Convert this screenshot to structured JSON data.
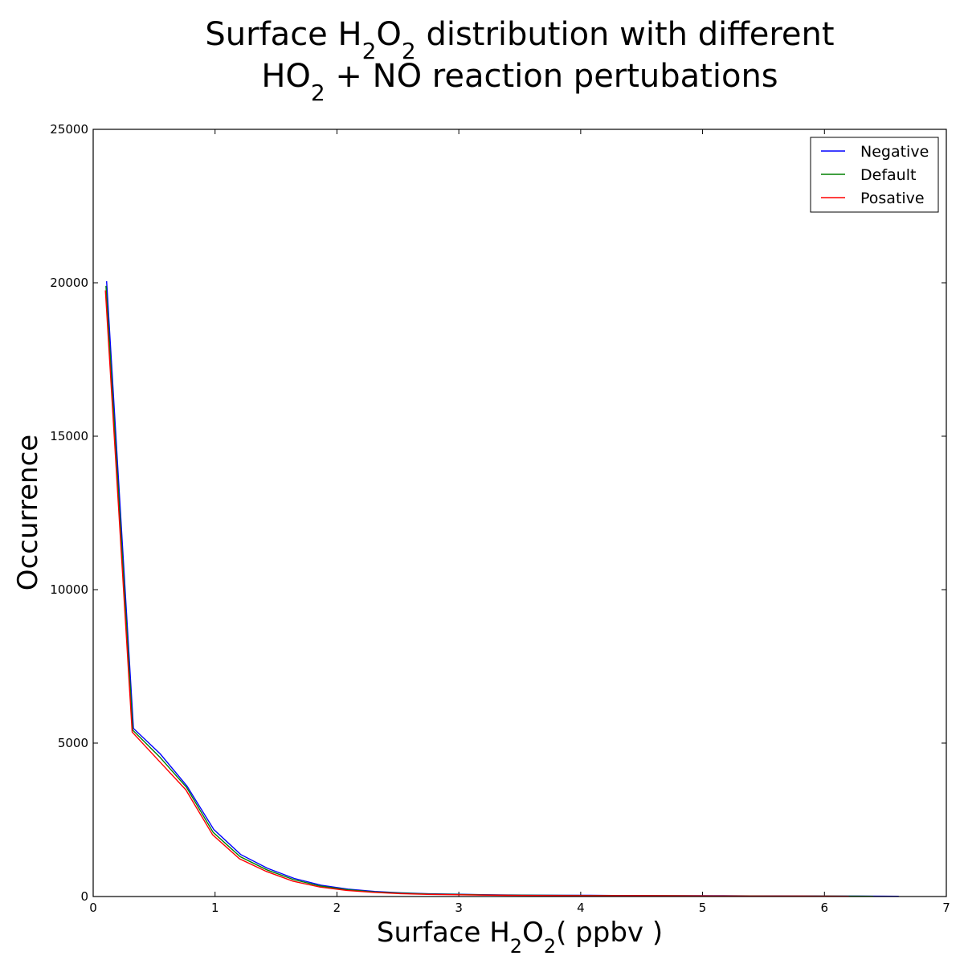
{
  "chart_data": {
    "type": "line",
    "title_line1": {
      "pre": "Surface H",
      "sub1": "2",
      "mid": "O",
      "sub2": "2",
      "post": " distribution with different"
    },
    "title_line2": {
      "pre": "HO",
      "sub": "2",
      "post": " + NO reaction pertubations"
    },
    "xlabel": {
      "pre": "Surface H",
      "sub1": "2",
      "mid": "O",
      "sub2": "2",
      "post": "( ppbv )"
    },
    "ylabel": "Occurrence",
    "xlim": [
      0,
      7
    ],
    "ylim": [
      0,
      25000
    ],
    "x_ticks": [
      0,
      1,
      2,
      3,
      4,
      5,
      6,
      7
    ],
    "y_ticks": [
      0,
      5000,
      10000,
      15000,
      20000,
      25000
    ],
    "x_tick_labels": [
      "0",
      "1",
      "2",
      "3",
      "4",
      "5",
      "6",
      "7"
    ],
    "y_tick_labels": [
      "0",
      "5000",
      "10000",
      "15000",
      "20000",
      "25000"
    ],
    "grid": false,
    "legend_position": "top-right",
    "series": [
      {
        "name": "Negative",
        "color": "#0000ff",
        "x": [
          0.11,
          0.33,
          0.55,
          0.77,
          0.99,
          1.21,
          1.43,
          1.65,
          1.87,
          2.09,
          2.31,
          2.53,
          2.75,
          2.97,
          3.19,
          3.41,
          3.63,
          3.85,
          4.07,
          4.29,
          4.51,
          4.73,
          4.95,
          5.17,
          5.39,
          5.61,
          5.83,
          6.05,
          6.27,
          6.49,
          6.61
        ],
        "y": [
          20050,
          5480,
          4650,
          3600,
          2180,
          1370,
          920,
          590,
          370,
          240,
          165,
          120,
          90,
          75,
          60,
          50,
          45,
          40,
          38,
          35,
          32,
          30,
          28,
          25,
          22,
          20,
          18,
          15,
          12,
          10,
          8
        ]
      },
      {
        "name": "Default",
        "color": "#008000",
        "x": [
          0.105,
          0.325,
          0.545,
          0.765,
          0.985,
          1.205,
          1.425,
          1.645,
          1.865,
          2.085,
          2.305,
          2.525,
          2.745,
          2.965,
          3.185,
          3.405,
          3.625,
          3.845,
          4.065,
          4.285,
          4.505,
          4.725,
          4.945,
          5.165,
          5.385,
          5.605,
          5.825,
          6.045,
          6.265,
          6.4
        ],
        "y": [
          19900,
          5420,
          4550,
          3560,
          2090,
          1300,
          870,
          550,
          340,
          220,
          150,
          110,
          80,
          70,
          55,
          45,
          40,
          36,
          34,
          30,
          28,
          26,
          24,
          21,
          19,
          17,
          15,
          12,
          10,
          8
        ]
      },
      {
        "name": "Posative",
        "color": "#ff0000",
        "x": [
          0.1,
          0.32,
          0.54,
          0.76,
          0.98,
          1.2,
          1.42,
          1.64,
          1.86,
          2.08,
          2.3,
          2.52,
          2.74,
          2.96,
          3.18,
          3.4,
          3.62,
          3.84,
          4.06,
          4.28,
          4.5,
          4.72,
          4.94,
          5.16,
          5.38,
          5.6,
          5.82,
          6.04,
          6.2
        ],
        "y": [
          19750,
          5360,
          4420,
          3480,
          2010,
          1230,
          820,
          500,
          310,
          200,
          135,
          95,
          70,
          60,
          48,
          40,
          35,
          32,
          30,
          27,
          25,
          23,
          21,
          19,
          17,
          15,
          13,
          10,
          8
        ]
      }
    ]
  }
}
